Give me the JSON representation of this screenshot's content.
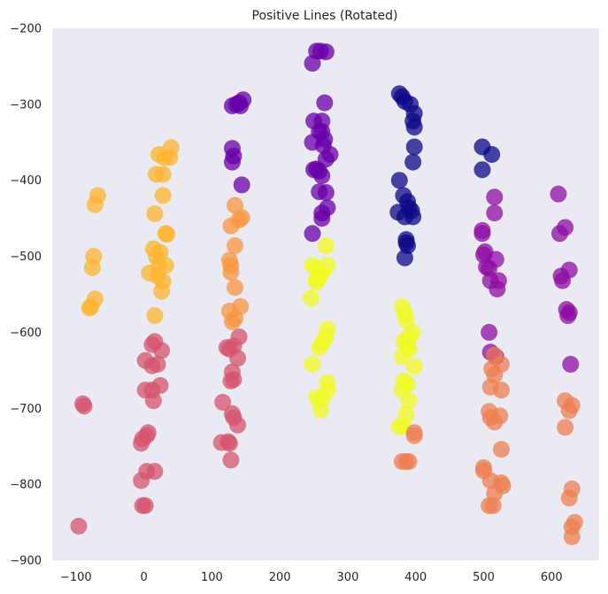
{
  "chart_data": {
    "type": "scatter",
    "title": "Positive Lines (Rotated)",
    "xlabel": "",
    "ylabel": "",
    "xlim": [
      -135,
      670
    ],
    "ylim": [
      -900,
      -200
    ],
    "xticks": [
      -100,
      0,
      100,
      200,
      300,
      400,
      500,
      600
    ],
    "yticks": [
      -200,
      -300,
      -400,
      -500,
      -600,
      -700,
      -800,
      -900
    ],
    "xtick_labels": [
      "−100",
      "0",
      "100",
      "200",
      "300",
      "400",
      "500",
      "600"
    ],
    "ytick_labels": [
      "−200",
      "−300",
      "−400",
      "−500",
      "−600",
      "−700",
      "−800",
      "−900"
    ],
    "grid": false,
    "background": "#eaeaf2",
    "colormap": "plasma",
    "marker_alpha": 0.75,
    "series": [
      {
        "color": "#fdb42f",
        "points": [
          [
            -68,
            -420
          ],
          [
            -72,
            -432
          ],
          [
            -74,
            -500
          ],
          [
            -76,
            -515
          ],
          [
            -72,
            -556
          ],
          [
            -78,
            -566
          ],
          [
            -80,
            -568
          ],
          [
            40,
            -357
          ],
          [
            22,
            -366
          ],
          [
            30,
            -370
          ],
          [
            38,
            -370
          ],
          [
            18,
            -392
          ],
          [
            28,
            -392
          ],
          [
            28,
            -420
          ],
          [
            16,
            -444
          ],
          [
            32,
            -470
          ],
          [
            34,
            -471
          ],
          [
            14,
            -490
          ],
          [
            24,
            -495
          ],
          [
            18,
            -500
          ],
          [
            22,
            -512
          ],
          [
            32,
            -512
          ],
          [
            8,
            -522
          ],
          [
            20,
            -526
          ],
          [
            28,
            -533
          ],
          [
            26,
            -546
          ],
          [
            16,
            -578
          ]
        ]
      },
      {
        "color": "#f89540",
        "points": [
          [
            134,
            -433
          ],
          [
            144,
            -449
          ],
          [
            140,
            -452
          ],
          [
            128,
            -460
          ],
          [
            134,
            -486
          ],
          [
            126,
            -505
          ],
          [
            128,
            -512
          ],
          [
            128,
            -521
          ],
          [
            134,
            -541
          ],
          [
            142,
            -566
          ],
          [
            126,
            -572
          ],
          [
            134,
            -582
          ],
          [
            130,
            -586
          ]
        ]
      },
      {
        "color": "#d5546e",
        "points": [
          [
            -90,
            -694
          ],
          [
            -88,
            -697
          ],
          [
            -96,
            -855
          ],
          [
            16,
            -612
          ],
          [
            12,
            -616
          ],
          [
            26,
            -624
          ],
          [
            20,
            -642
          ],
          [
            12,
            -644
          ],
          [
            2,
            -637
          ],
          [
            24,
            -670
          ],
          [
            12,
            -676
          ],
          [
            2,
            -676
          ],
          [
            14,
            -690
          ],
          [
            6,
            -732
          ],
          [
            4,
            -736
          ],
          [
            -2,
            -740
          ],
          [
            -4,
            -746
          ],
          [
            4,
            -783
          ],
          [
            16,
            -783
          ],
          [
            -4,
            -795
          ],
          [
            -2,
            -828
          ],
          [
            2,
            -828
          ],
          [
            140,
            -606
          ],
          [
            132,
            -618
          ],
          [
            122,
            -620
          ],
          [
            126,
            -622
          ],
          [
            138,
            -634
          ],
          [
            130,
            -652
          ],
          [
            132,
            -662
          ],
          [
            128,
            -664
          ],
          [
            116,
            -692
          ],
          [
            130,
            -707
          ],
          [
            132,
            -712
          ],
          [
            138,
            -722
          ],
          [
            124,
            -744
          ],
          [
            126,
            -746
          ],
          [
            114,
            -745
          ],
          [
            128,
            -768
          ]
        ]
      },
      {
        "color": "#6a00a8",
        "points": [
          [
            130,
            -302
          ],
          [
            136,
            -300
          ],
          [
            140,
            -298
          ],
          [
            146,
            -294
          ],
          [
            142,
            -302
          ],
          [
            130,
            -358
          ],
          [
            132,
            -368
          ],
          [
            130,
            -376
          ],
          [
            144,
            -406
          ],
          [
            254,
            -230
          ],
          [
            260,
            -230
          ],
          [
            268,
            -231
          ],
          [
            248,
            -246
          ],
          [
            266,
            -298
          ],
          [
            262,
            -322
          ],
          [
            250,
            -322
          ],
          [
            262,
            -336
          ],
          [
            258,
            -336
          ],
          [
            266,
            -346
          ],
          [
            248,
            -350
          ],
          [
            264,
            -354
          ],
          [
            274,
            -366
          ],
          [
            268,
            -372
          ],
          [
            254,
            -385
          ],
          [
            250,
            -386
          ],
          [
            258,
            -388
          ],
          [
            262,
            -394
          ],
          [
            258,
            -415
          ],
          [
            268,
            -416
          ],
          [
            270,
            -436
          ],
          [
            262,
            -443
          ],
          [
            262,
            -450
          ],
          [
            248,
            -470
          ]
        ]
      },
      {
        "color": "#0d0887",
        "points": [
          [
            376,
            -286
          ],
          [
            380,
            -290
          ],
          [
            384,
            -296
          ],
          [
            392,
            -300
          ],
          [
            398,
            -312
          ],
          [
            396,
            -322
          ],
          [
            398,
            -330
          ],
          [
            398,
            -356
          ],
          [
            396,
            -376
          ],
          [
            376,
            -400
          ],
          [
            382,
            -420
          ],
          [
            388,
            -428
          ],
          [
            390,
            -436
          ],
          [
            394,
            -440
          ],
          [
            374,
            -442
          ],
          [
            396,
            -448
          ],
          [
            384,
            -448
          ],
          [
            386,
            -478
          ],
          [
            386,
            -482
          ],
          [
            388,
            -486
          ],
          [
            384,
            -502
          ],
          [
            498,
            -356
          ],
          [
            512,
            -366
          ],
          [
            498,
            -386
          ]
        ]
      },
      {
        "color": "#8f0da4",
        "points": [
          [
            516,
            -422
          ],
          [
            516,
            -443
          ],
          [
            498,
            -466
          ],
          [
            498,
            -470
          ],
          [
            502,
            -494
          ],
          [
            500,
            -498
          ],
          [
            518,
            -504
          ],
          [
            504,
            -514
          ],
          [
            508,
            -516
          ],
          [
            510,
            -532
          ],
          [
            522,
            -532
          ],
          [
            520,
            -543
          ],
          [
            508,
            -600
          ],
          [
            510,
            -626
          ],
          [
            518,
            -632
          ],
          [
            610,
            -418
          ],
          [
            620,
            -462
          ],
          [
            612,
            -470
          ],
          [
            626,
            -518
          ],
          [
            614,
            -526
          ],
          [
            616,
            -532
          ],
          [
            622,
            -570
          ],
          [
            626,
            -574
          ],
          [
            624,
            -578
          ],
          [
            628,
            -642
          ]
        ]
      },
      {
        "color": "#f0f921",
        "points": [
          [
            268,
            -486
          ],
          [
            248,
            -512
          ],
          [
            270,
            -512
          ],
          [
            256,
            -516
          ],
          [
            262,
            -522
          ],
          [
            258,
            -526
          ],
          [
            254,
            -530
          ],
          [
            254,
            -534
          ],
          [
            246,
            -555
          ],
          [
            270,
            -596
          ],
          [
            268,
            -606
          ],
          [
            262,
            -614
          ],
          [
            258,
            -620
          ],
          [
            248,
            -642
          ],
          [
            270,
            -666
          ],
          [
            270,
            -676
          ],
          [
            254,
            -686
          ],
          [
            262,
            -688
          ],
          [
            260,
            -702
          ],
          [
            380,
            -566
          ],
          [
            384,
            -576
          ],
          [
            386,
            -584
          ],
          [
            396,
            -600
          ],
          [
            390,
            -606
          ],
          [
            382,
            -612
          ],
          [
            388,
            -616
          ],
          [
            390,
            -622
          ],
          [
            380,
            -632
          ],
          [
            398,
            -645
          ],
          [
            382,
            -664
          ],
          [
            388,
            -668
          ],
          [
            380,
            -676
          ],
          [
            390,
            -690
          ],
          [
            386,
            -708
          ],
          [
            376,
            -724
          ],
          [
            382,
            -724
          ]
        ]
      },
      {
        "color": "#ee7f52",
        "points": [
          [
            398,
            -732
          ],
          [
            398,
            -736
          ],
          [
            380,
            -770
          ],
          [
            390,
            -770
          ],
          [
            386,
            -770
          ],
          [
            516,
            -630
          ],
          [
            526,
            -642
          ],
          [
            512,
            -648
          ],
          [
            516,
            -656
          ],
          [
            510,
            -672
          ],
          [
            526,
            -676
          ],
          [
            508,
            -704
          ],
          [
            524,
            -710
          ],
          [
            510,
            -712
          ],
          [
            516,
            -718
          ],
          [
            526,
            -754
          ],
          [
            500,
            -778
          ],
          [
            500,
            -782
          ],
          [
            510,
            -795
          ],
          [
            526,
            -798
          ],
          [
            528,
            -802
          ],
          [
            516,
            -812
          ],
          [
            508,
            -828
          ],
          [
            514,
            -828
          ],
          [
            620,
            -690
          ],
          [
            630,
            -696
          ],
          [
            626,
            -703
          ],
          [
            620,
            -725
          ],
          [
            630,
            -806
          ],
          [
            626,
            -818
          ],
          [
            634,
            -850
          ],
          [
            630,
            -856
          ],
          [
            630,
            -869
          ]
        ]
      }
    ]
  }
}
